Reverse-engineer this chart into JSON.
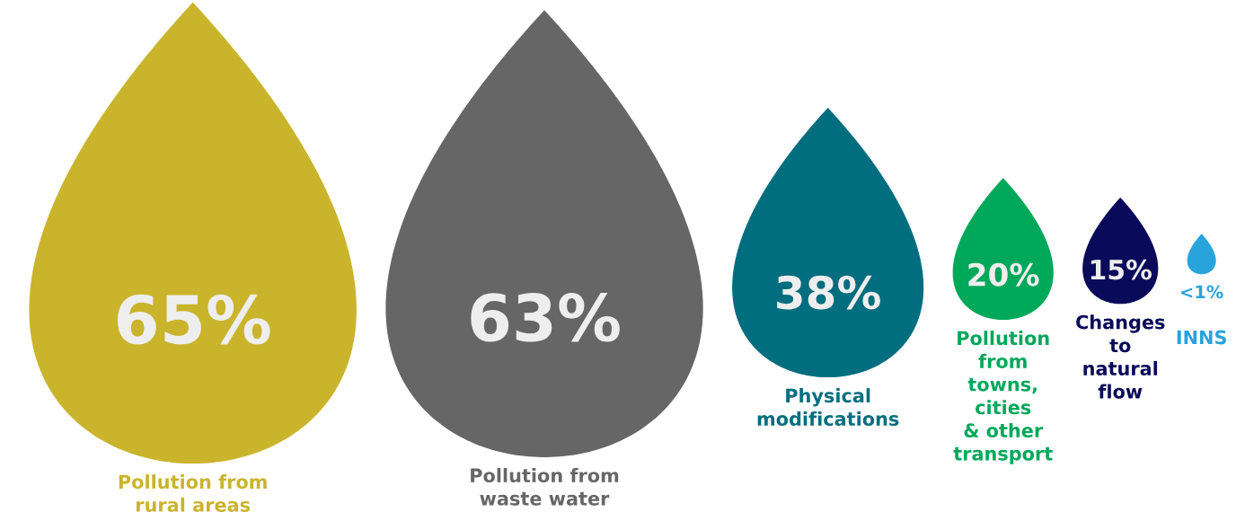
{
  "chart_data": {
    "type": "other",
    "categories": [
      "Pollution from\nrural areas",
      "Pollution from\nwaste water",
      "Physical\nmodifications",
      "Pollution\nfrom\ntowns,\ncities\n& other\ntransport",
      "Changes\nto\nnatural\nflow",
      "INNS"
    ],
    "values": [
      65,
      63,
      38,
      20,
      15,
      null
    ],
    "value_labels": [
      "65%",
      "63%",
      "38%",
      "20%",
      "15%",
      "<1%"
    ],
    "colors": [
      "#c9b42c",
      "#666666",
      "#006e7f",
      "#00a85a",
      "#0a0a5a",
      "#29a3dc"
    ]
  }
}
